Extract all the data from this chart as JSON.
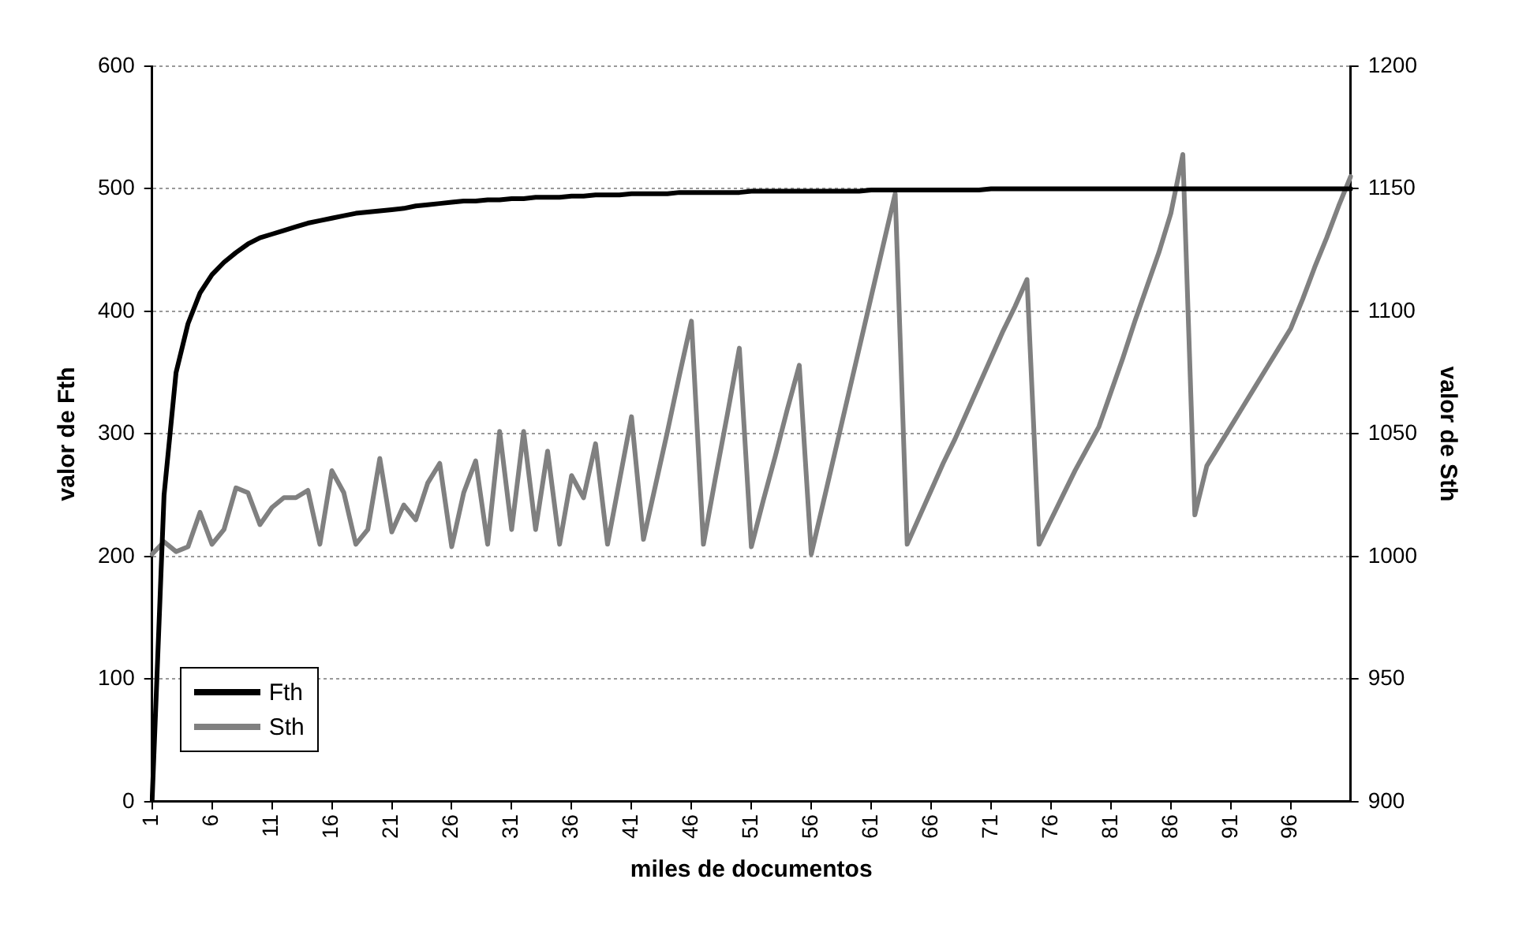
{
  "chart_data": {
    "type": "line",
    "xlabel": "miles de documentos",
    "ylabel": "valor de Fth",
    "y2label": "valor de Sth",
    "categories": [
      "1",
      null,
      null,
      null,
      null,
      "6",
      null,
      null,
      null,
      null,
      "11",
      null,
      null,
      null,
      null,
      "16",
      null,
      null,
      null,
      null,
      "21",
      null,
      null,
      null,
      null,
      "26",
      null,
      null,
      null,
      null,
      "31",
      null,
      null,
      null,
      null,
      "36",
      null,
      null,
      null,
      null,
      "41",
      null,
      null,
      null,
      null,
      "46",
      null,
      null,
      null,
      null,
      "51",
      null,
      null,
      null,
      null,
      "56",
      null,
      null,
      null,
      null,
      "61",
      null,
      null,
      null,
      null,
      "66",
      null,
      null,
      null,
      null,
      "71",
      null,
      null,
      null,
      null,
      "76",
      null,
      null,
      null,
      null,
      "81",
      null,
      null,
      null,
      null,
      "86",
      null,
      null,
      null,
      null,
      "91",
      null,
      null,
      null,
      null,
      "96",
      null,
      null,
      null,
      null,
      null
    ],
    "series": [
      {
        "name": "Fth",
        "color": "#000000",
        "values": [
          0,
          250,
          350,
          390,
          415,
          430,
          440,
          448,
          455,
          460,
          463,
          466,
          469,
          472,
          474,
          476,
          478,
          480,
          481,
          482,
          483,
          484,
          486,
          487,
          488,
          489,
          490,
          490,
          491,
          491,
          492,
          492,
          493,
          493,
          493,
          494,
          494,
          495,
          495,
          495,
          496,
          496,
          496,
          496,
          497,
          497,
          497,
          497,
          497,
          497,
          498,
          498,
          498,
          498,
          498,
          498,
          498,
          498,
          498,
          498,
          499,
          499,
          499,
          499,
          499,
          499,
          499,
          499,
          499,
          499,
          500,
          500,
          500,
          500,
          500,
          500,
          500,
          500,
          500,
          500,
          500,
          500,
          500,
          500,
          500,
          500,
          500,
          500,
          500,
          500,
          500,
          500,
          500,
          500,
          500,
          500,
          500,
          500,
          500,
          500,
          500
        ]
      },
      {
        "name": "Sth",
        "color": "#808080",
        "axis": "y2",
        "values": [
          1001,
          1006,
          1002,
          1004,
          1018,
          1005,
          1011,
          1028,
          1026,
          1013,
          1020,
          1024,
          1024,
          1027,
          1005,
          1035,
          1026,
          1005,
          1011,
          1040,
          1010,
          1021,
          1015,
          1030,
          1038,
          1004,
          1026,
          1039,
          1005,
          1051,
          1011,
          1051,
          1011,
          1043,
          1005,
          1033,
          1024,
          1046,
          1005,
          1031,
          1057,
          1007,
          1029,
          1051,
          1074,
          1096,
          1005,
          1032,
          1058,
          1085,
          1004,
          1023,
          1041,
          1060,
          1078,
          1001,
          1022,
          1043,
          1064,
          1085,
          1106,
          1127,
          1148,
          1005,
          1016,
          1027,
          1038,
          1048,
          1059,
          1070,
          1081,
          1092,
          1102,
          1113,
          1005,
          1015,
          1025,
          1035,
          1044,
          1053,
          1067,
          1081,
          1096,
          1110,
          1124,
          1140,
          1164,
          1017,
          1037,
          1045,
          1053,
          1061,
          1069,
          1077,
          1085,
          1093,
          1105,
          1118,
          1130,
          1143,
          1155
        ]
      }
    ],
    "ylim": [
      0,
      600
    ],
    "yticks": [
      0,
      100,
      200,
      300,
      400,
      500,
      600
    ],
    "y2lim": [
      900,
      1200
    ],
    "y2ticks": [
      900,
      950,
      1000,
      1050,
      1100,
      1150,
      1200
    ],
    "grid": "y",
    "legend": "bottom left",
    "marker": "none",
    "line_style": "solid"
  }
}
